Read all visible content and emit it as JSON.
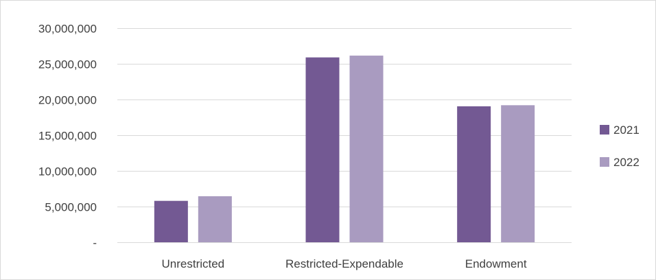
{
  "chart_data": {
    "type": "bar",
    "categories": [
      "Unrestricted",
      "Restricted-Expendable",
      "Endowment"
    ],
    "series": [
      {
        "name": "2021",
        "color": "#735993",
        "values": [
          5800000,
          25900000,
          19050000
        ]
      },
      {
        "name": "2022",
        "color": "#a99bc0",
        "values": [
          6450000,
          26150000,
          19200000
        ]
      }
    ],
    "title": "",
    "xlabel": "",
    "ylabel": "",
    "ylim": [
      0,
      30000000
    ],
    "yticks": [
      0,
      5000000,
      10000000,
      15000000,
      20000000,
      25000000,
      30000000
    ],
    "ytick_labels": [
      "-",
      "5,000,000",
      "10,000,000",
      "15,000,000",
      "20,000,000",
      "25,000,000",
      "30,000,000"
    ],
    "grid": true,
    "gridline_color": "#d9d9d9",
    "legend_position": "right"
  }
}
